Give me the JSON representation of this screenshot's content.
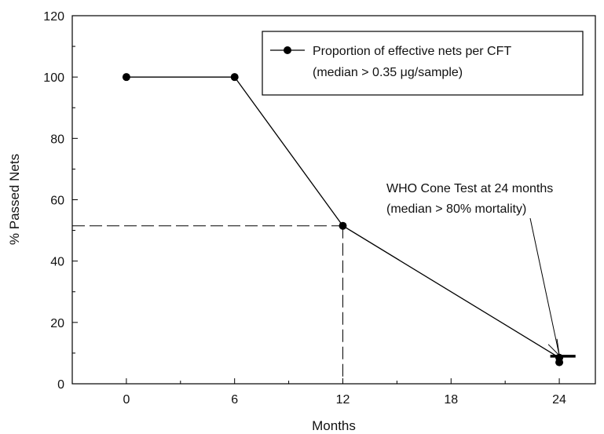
{
  "chart_data": {
    "type": "line",
    "title": "",
    "xlabel": "Months",
    "ylabel": "% Passed Nets",
    "xlim": [
      -3,
      26
    ],
    "ylim": [
      0,
      120
    ],
    "x_ticks": [
      0,
      6,
      12,
      18,
      24
    ],
    "x_tick_labels": [
      "0",
      "6",
      "12",
      "18",
      "24"
    ],
    "y_ticks": [
      0,
      20,
      40,
      60,
      80,
      100,
      120
    ],
    "y_tick_labels": [
      "0",
      "20",
      "40",
      "60",
      "80",
      "100",
      "120"
    ],
    "grid": false,
    "legend_position": "top-right",
    "series": [
      {
        "name": "Proportion of effective nets per CFT",
        "x": [
          0,
          6,
          12,
          24
        ],
        "y": [
          100,
          100,
          51.5,
          8.5
        ],
        "color": "#000000"
      }
    ],
    "legend": {
      "line1": "Proportion of effective nets per CFT",
      "line2": "(median > 0.35 μg/sample)"
    },
    "reference_lines": {
      "x": 12,
      "y": 51.5,
      "style": "dashed"
    },
    "extra_point": {
      "x": 24,
      "y": 7,
      "bar_y": 9,
      "bar_x_range": [
        23.5,
        24.9
      ]
    },
    "annotation": {
      "line1": "WHO Cone Test at 24 months",
      "line2": "(median > 80% mortality)",
      "target_x": 24,
      "target_y": 9
    }
  }
}
